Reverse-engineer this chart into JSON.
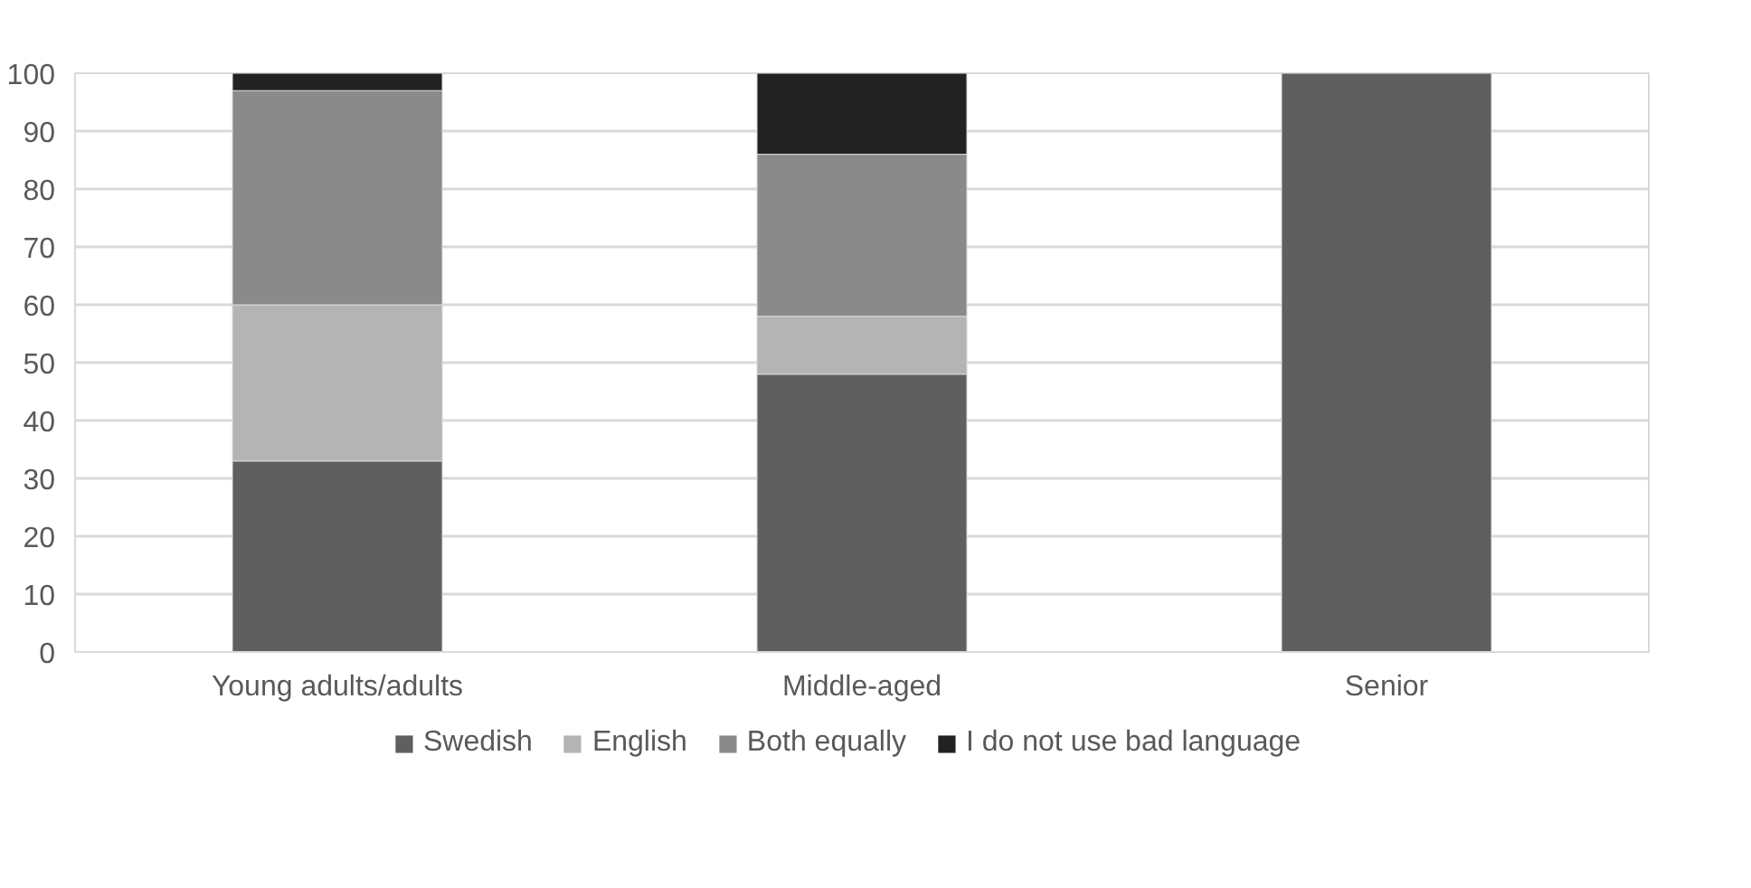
{
  "chart_data": {
    "type": "bar",
    "stacked": true,
    "categories": [
      "Young adults/adults",
      "Middle-aged",
      "Senior"
    ],
    "series": [
      {
        "name": "Swedish",
        "color": "#5f5f5f",
        "values": [
          33,
          48,
          100
        ]
      },
      {
        "name": "English",
        "color": "#b4b4b4",
        "values": [
          27,
          10,
          null
        ]
      },
      {
        "name": "Both equally",
        "color": "#8a8a8a",
        "values": [
          37,
          28,
          null
        ]
      },
      {
        "name": "I do not use bad language",
        "color": "#222222",
        "values": [
          3,
          14,
          null
        ]
      }
    ],
    "ylim": [
      0,
      100
    ],
    "yticks": [
      0,
      10,
      20,
      30,
      40,
      50,
      60,
      70,
      80,
      90,
      100
    ],
    "grid": "y",
    "legend": "bottom"
  }
}
